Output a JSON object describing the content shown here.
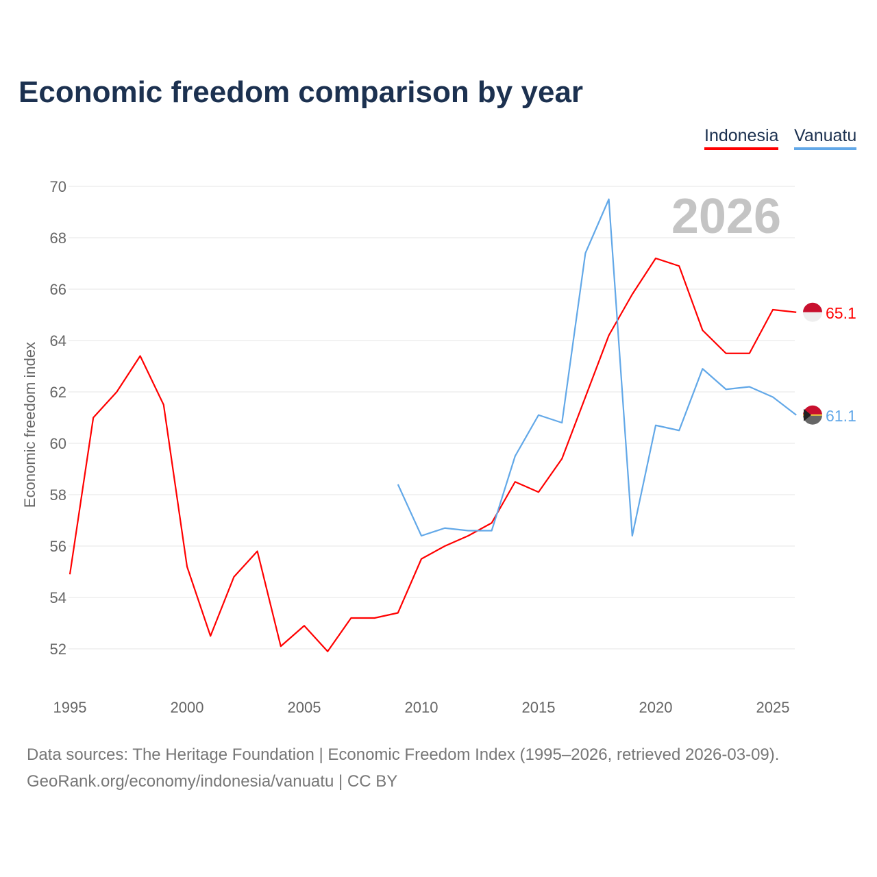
{
  "title": "Economic freedom comparison by year",
  "footer": {
    "line1": "Data sources: The Heritage Foundation | Economic Freedom Index (1995–2026, retrieved 2026-03-09).",
    "line2": "GeoRank.org/economy/indonesia/vanuatu | CC BY"
  },
  "chart_data": {
    "type": "line",
    "title": "Economic freedom comparison by year",
    "ylabel": "Economic freedom index",
    "xlabel": "",
    "year_label": "2026",
    "xlim": [
      1995,
      2026
    ],
    "ylim": [
      51,
      70
    ],
    "yticks": [
      "52",
      "54",
      "56",
      "58",
      "60",
      "62",
      "64",
      "66",
      "68",
      "70"
    ],
    "xticks": [
      "1995",
      "2000",
      "2005",
      "2010",
      "2015",
      "2020",
      "2025"
    ],
    "grid": true,
    "legend": "top-right",
    "series": [
      {
        "name": "Indonesia",
        "color": "#ff0000",
        "end_label": "65.1",
        "x": [
          1995,
          1996,
          1997,
          1998,
          1999,
          2000,
          2001,
          2002,
          2003,
          2004,
          2005,
          2006,
          2007,
          2008,
          2009,
          2010,
          2011,
          2012,
          2013,
          2014,
          2015,
          2016,
          2017,
          2018,
          2019,
          2020,
          2021,
          2022,
          2023,
          2024,
          2025,
          2026
        ],
        "values": [
          54.9,
          61.0,
          62.0,
          63.4,
          61.5,
          55.2,
          52.5,
          54.8,
          55.8,
          52.1,
          52.9,
          51.9,
          53.2,
          53.2,
          53.4,
          55.5,
          56.0,
          56.4,
          56.9,
          58.5,
          58.1,
          59.4,
          61.8,
          64.2,
          65.8,
          67.2,
          66.9,
          64.4,
          63.5,
          63.5,
          65.2,
          65.1
        ]
      },
      {
        "name": "Vanuatu",
        "color": "#62a8e8",
        "end_label": "61.1",
        "x": [
          2009,
          2010,
          2011,
          2012,
          2013,
          2014,
          2015,
          2016,
          2017,
          2018,
          2019,
          2020,
          2021,
          2022,
          2023,
          2024,
          2025,
          2026
        ],
        "values": [
          58.4,
          56.4,
          56.7,
          56.6,
          56.6,
          59.5,
          61.1,
          60.8,
          67.4,
          69.5,
          56.4,
          60.7,
          60.5,
          62.9,
          62.1,
          62.2,
          61.8,
          61.1
        ]
      }
    ]
  }
}
